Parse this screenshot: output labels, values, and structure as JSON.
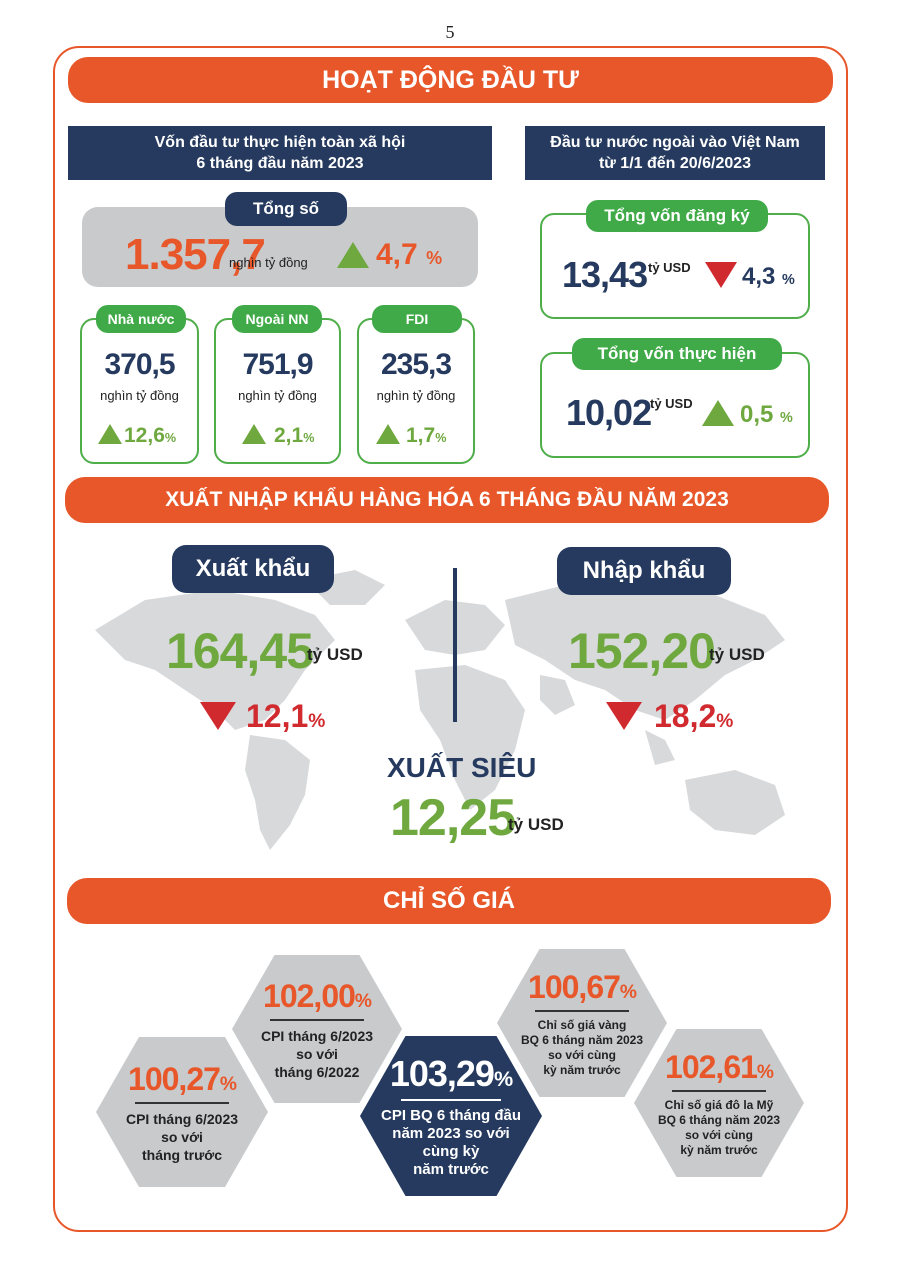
{
  "page_number": "5",
  "investment": {
    "banner": "HOẠT ĐỘNG ĐẦU TƯ",
    "domestic_header_line1": "Vốn đầu tư thực hiện toàn xã hội",
    "domestic_header_line2": "6 tháng đầu năm 2023",
    "total_label": "Tổng số",
    "total_value": "1.357,7",
    "total_unit": "nghìn tỷ đồng",
    "total_change": "4,7",
    "sectors": [
      {
        "label": "Nhà nước",
        "value": "370,5",
        "unit": "nghìn tỷ đồng",
        "change": "12,6"
      },
      {
        "label": "Ngoài NN",
        "value": "751,9",
        "unit": "nghìn tỷ đồng",
        "change": "2,1"
      },
      {
        "label": "FDI",
        "value": "235,3",
        "unit": "nghìn tỷ đồng",
        "change": "1,7"
      }
    ],
    "fdi_header_line1": "Đầu tư nước ngoài vào Việt Nam",
    "fdi_header_line2": "từ 1/1 đến 20/6/2023",
    "registered_label": "Tổng vốn đăng ký",
    "registered_value": "13,43",
    "registered_unit": "tỷ USD",
    "registered_change": "4,3",
    "disbursed_label": "Tổng vốn thực hiện",
    "disbursed_value": "10,02",
    "disbursed_unit": "tỷ USD",
    "disbursed_change": "0,5",
    "percent_sign": "%"
  },
  "trade": {
    "banner": "XUẤT NHẬP KHẨU HÀNG HÓA 6 THÁNG ĐẦU NĂM 2023",
    "export_label": "Xuất khẩu",
    "export_value": "164,45",
    "export_unit": "tỷ USD",
    "export_change": "12,1",
    "import_label": "Nhập khẩu",
    "import_value": "152,20",
    "import_unit": "tỷ USD",
    "import_change": "18,2",
    "surplus_label": "XUẤT SIÊU",
    "surplus_value": "12,25",
    "surplus_unit": "tỷ USD"
  },
  "prices": {
    "banner": "CHỈ SỐ GIÁ",
    "items": [
      {
        "value": "100,27",
        "line1": "CPI tháng 6/2023",
        "line2": "so với",
        "line3": "tháng trước",
        "line4": ""
      },
      {
        "value": "102,00",
        "line1": "CPI tháng 6/2023",
        "line2": "so với",
        "line3": "tháng 6/2022",
        "line4": ""
      },
      {
        "value": "103,29",
        "line1": "CPI BQ 6 tháng đầu",
        "line2": "năm 2023 so với",
        "line3": "cùng kỳ",
        "line4": "năm trước"
      },
      {
        "value": "100,67",
        "line1": "Chỉ số giá vàng",
        "line2": "BQ 6 tháng năm 2023",
        "line3": "so với cùng",
        "line4": "kỳ năm trước"
      },
      {
        "value": "102,61",
        "line1": "Chỉ số giá đô la Mỹ",
        "line2": "BQ 6 tháng năm 2023",
        "line3": "so với cùng",
        "line4": "kỳ năm trước"
      }
    ]
  },
  "colors": {
    "orange": "#e8572a",
    "navy": "#253a5e",
    "green": "#3faa47",
    "red": "#d02a2f",
    "gray": "#c9cacc"
  }
}
